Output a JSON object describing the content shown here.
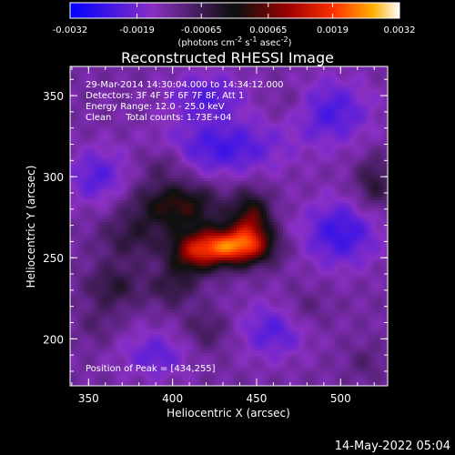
{
  "chart_data": {
    "type": "heatmap",
    "title": "Reconstructed RHESSI Image",
    "xlabel": "Heliocentric X (arcsec)",
    "ylabel": "Heliocentric Y (arcsec)",
    "xlim": [
      339,
      528
    ],
    "ylim": [
      171,
      368
    ],
    "x_ticks": [
      {
        "value": 350,
        "label": "350"
      },
      {
        "value": 400,
        "label": "400"
      },
      {
        "value": 450,
        "label": "450"
      },
      {
        "value": 500,
        "label": "500"
      }
    ],
    "y_ticks": [
      {
        "value": 200,
        "label": "200"
      },
      {
        "value": 250,
        "label": "250"
      },
      {
        "value": 300,
        "label": "300"
      },
      {
        "value": 350,
        "label": "350"
      }
    ],
    "colorbar": {
      "range": [
        -0.0032,
        0.0032
      ],
      "ticks": [
        {
          "value": -0.0032,
          "label": "-0.0032"
        },
        {
          "value": -0.0019,
          "label": "-0.0019"
        },
        {
          "value": -0.00065,
          "label": "-0.00065"
        },
        {
          "value": 0.00065,
          "label": "0.00065"
        },
        {
          "value": 0.0019,
          "label": "0.0019"
        },
        {
          "value": 0.0032,
          "label": "0.0032"
        }
      ],
      "unit_label": "(photons cm",
      "unit_exp1": "-2",
      "unit_mid": " s",
      "unit_exp2": "-1",
      "unit_end": " asec",
      "unit_exp3": "-2",
      "unit_close": ")"
    },
    "info_lines": [
      "29-Mar-2014 14:30:04.000 to 14:34:12.000",
      "Detectors: 3F 4F 5F 6F 7F 8F, Att 1",
      "Energy Range: 12.0 - 25.0 keV",
      "Clean     Total counts: 1.73E+04"
    ],
    "peak_label": "Position of Peak = [434,255]",
    "peak": {
      "x": 434,
      "y": 255
    },
    "sources": [
      {
        "x": 434,
        "y": 257,
        "sx": 16,
        "sy": 8,
        "amp": 0.0034
      },
      {
        "x": 447,
        "y": 273,
        "sx": 8,
        "sy": 12,
        "amp": 0.0018
      },
      {
        "x": 403,
        "y": 282,
        "sx": 18,
        "sy": 10,
        "amp": 0.0016
      },
      {
        "x": 412,
        "y": 252,
        "sx": 10,
        "sy": 9,
        "amp": 0.0015
      },
      {
        "x": 376,
        "y": 262,
        "sx": 14,
        "sy": 10,
        "amp": 0.0008
      },
      {
        "x": 365,
        "y": 232,
        "sx": 12,
        "sy": 10,
        "amp": 0.0009
      },
      {
        "x": 400,
        "y": 232,
        "sx": 10,
        "sy": 9,
        "amp": 0.0008
      },
      {
        "x": 420,
        "y": 205,
        "sx": 10,
        "sy": 9,
        "amp": 0.0006
      },
      {
        "x": 520,
        "y": 295,
        "sx": 8,
        "sy": 12,
        "amp": 0.0009
      },
      {
        "x": 395,
        "y": 308,
        "sx": 10,
        "sy": 8,
        "amp": 0.0006
      },
      {
        "x": 478,
        "y": 218,
        "sx": 10,
        "sy": 9,
        "amp": 0.0004
      },
      {
        "x": 355,
        "y": 208,
        "sx": 8,
        "sy": 8,
        "amp": 0.0004
      },
      {
        "x": 470,
        "y": 345,
        "sx": 9,
        "sy": 8,
        "amp": 0.0003
      },
      {
        "x": 515,
        "y": 185,
        "sx": 8,
        "sy": 8,
        "amp": 0.0004
      },
      {
        "x": 430,
        "y": 318,
        "sx": 25,
        "sy": 12,
        "amp": -0.0011
      },
      {
        "x": 500,
        "y": 265,
        "sx": 16,
        "sy": 14,
        "amp": -0.0012
      },
      {
        "x": 495,
        "y": 340,
        "sx": 16,
        "sy": 14,
        "amp": -0.001
      },
      {
        "x": 460,
        "y": 205,
        "sx": 14,
        "sy": 12,
        "amp": -0.0009
      },
      {
        "x": 390,
        "y": 190,
        "sx": 14,
        "sy": 10,
        "amp": -0.0008
      },
      {
        "x": 355,
        "y": 300,
        "sx": 12,
        "sy": 12,
        "amp": -0.0009
      },
      {
        "x": 420,
        "y": 350,
        "sx": 16,
        "sy": 10,
        "amp": -0.0009
      }
    ]
  },
  "footer_timestamp": "14-May-2022 05:04"
}
